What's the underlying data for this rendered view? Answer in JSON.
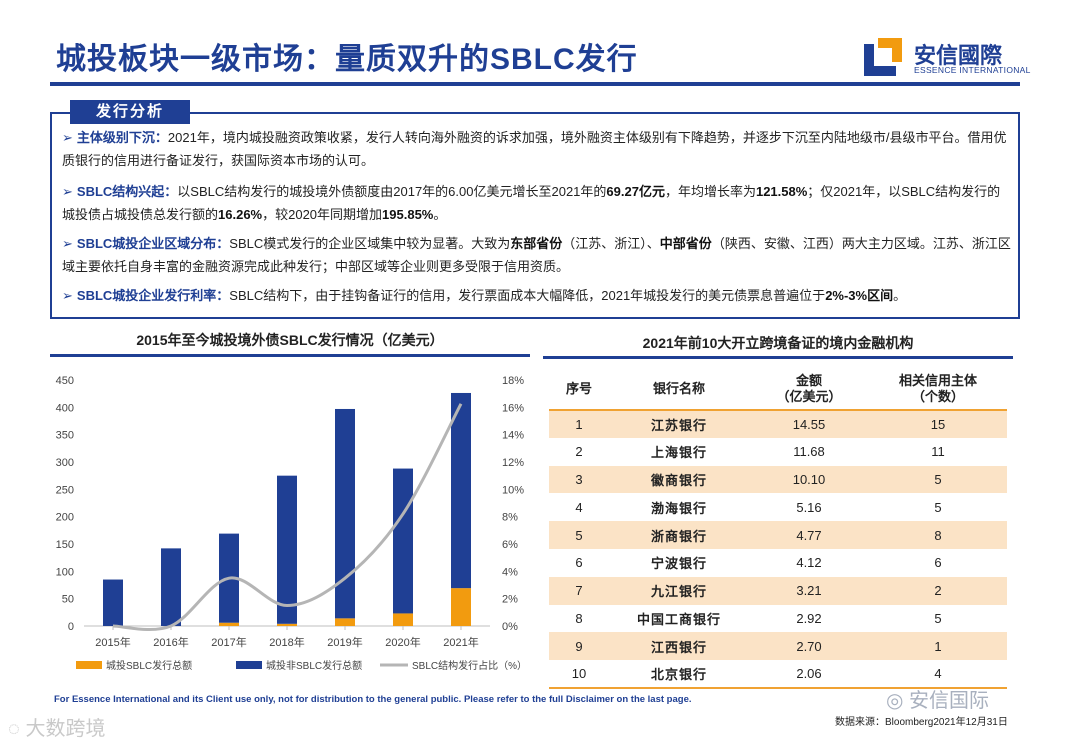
{
  "header": {
    "title": "城投板块一级市场：量质双升的SBLC发行",
    "logo_cn": "安信國際",
    "logo_en": "ESSENCE INTERNATIONAL"
  },
  "analysis": {
    "tab_label": "发行分析",
    "bullets": [
      {
        "heading": "主体级别下沉：",
        "parts": [
          {
            "t": "2021年，境内城投融资政策收紧，发行人转向海外融资的诉求加强，境外融资主体级别有下降趋势，并逐步下沉至内陆地级市/县级市平台。借用优质银行的信用进行备证发行，获国际资本市场的认可。",
            "b": false
          }
        ]
      },
      {
        "heading": "SBLC结构兴起：",
        "parts": [
          {
            "t": "以SBLC结构发行的城投境外债额度由2017年的6.00亿美元增长至2021年的",
            "b": false
          },
          {
            "t": "69.27亿元",
            "b": true
          },
          {
            "t": "，年均增长率为",
            "b": false
          },
          {
            "t": "121.58%",
            "b": true
          },
          {
            "t": "；仅2021年，以SBLC结构发行的城投债占城投债总发行额的",
            "b": false
          },
          {
            "t": "16.26%",
            "b": true
          },
          {
            "t": "，较2020年同期增加",
            "b": false
          },
          {
            "t": "195.85%",
            "b": true
          },
          {
            "t": "。",
            "b": false
          }
        ]
      },
      {
        "heading": "SBLC城投企业区域分布：",
        "parts": [
          {
            "t": "SBLC模式发行的企业区域集中较为显著。大致为",
            "b": false
          },
          {
            "t": "东部省份",
            "b": true
          },
          {
            "t": "（江苏、浙江）、",
            "b": false
          },
          {
            "t": "中部省份",
            "b": true
          },
          {
            "t": "（陕西、安徽、江西）两大主力区域。江苏、浙江区域主要依托自身丰富的金融资源完成此种发行；中部区域等企业则更多受限于信用资质。",
            "b": false
          }
        ]
      },
      {
        "heading": "SBLC城投企业发行利率：",
        "parts": [
          {
            "t": "SBLC结构下，由于挂钩备证行的信用，发行票面成本大幅降低，2021年城投发行的美元债票息普遍位于",
            "b": false
          },
          {
            "t": "2%-3%区间",
            "b": true
          },
          {
            "t": "。",
            "b": false
          }
        ]
      }
    ]
  },
  "chart_data": {
    "type": "bar",
    "title": "2015年至今城投境外债SBLC发行情况（亿美元）",
    "categories": [
      "2015年",
      "2016年",
      "2017年",
      "2018年",
      "2019年",
      "2020年",
      "2021年"
    ],
    "series": [
      {
        "name": "城投SBLC发行总额",
        "type": "bar-stacked",
        "axis": "left",
        "color": "#f29b0f",
        "values": [
          0,
          0,
          6,
          4,
          14,
          23,
          69.27
        ]
      },
      {
        "name": "城投非SBLC发行总额",
        "type": "bar-stacked",
        "axis": "left",
        "color": "#1f3f94",
        "values": [
          85,
          142,
          163,
          271,
          383,
          265,
          357
        ]
      },
      {
        "name": "SBLC结构发行占比（%）",
        "type": "line",
        "axis": "right",
        "color": "#b5b5b5",
        "values": [
          0,
          0,
          3.5,
          1.5,
          3.5,
          8.2,
          16.26
        ]
      }
    ],
    "ylim_left": [
      0,
      450
    ],
    "yticks_left": [
      0,
      50,
      100,
      150,
      200,
      250,
      300,
      350,
      400,
      450
    ],
    "ylim_right": [
      0,
      18
    ],
    "yticks_right": [
      "0%",
      "2%",
      "4%",
      "6%",
      "8%",
      "10%",
      "12%",
      "14%",
      "16%",
      "18%"
    ],
    "legend_position": "bottom"
  },
  "table": {
    "title": "2021年前10大开立跨境备证的境内金融机构",
    "headers": [
      "序号",
      "银行名称",
      "金额\n（亿美元）",
      "相关信用主体\n（个数）"
    ],
    "rows": [
      [
        "1",
        "江苏银行",
        "14.55",
        "15"
      ],
      [
        "2",
        "上海银行",
        "11.68",
        "11"
      ],
      [
        "3",
        "徽商银行",
        "10.10",
        "5"
      ],
      [
        "4",
        "渤海银行",
        "5.16",
        "5"
      ],
      [
        "5",
        "浙商银行",
        "4.77",
        "8"
      ],
      [
        "6",
        "宁波银行",
        "4.12",
        "6"
      ],
      [
        "7",
        "九江银行",
        "3.21",
        "2"
      ],
      [
        "8",
        "中国工商银行",
        "2.92",
        "5"
      ],
      [
        "9",
        "江西银行",
        "2.70",
        "1"
      ],
      [
        "10",
        "北京银行",
        "2.06",
        "4"
      ]
    ]
  },
  "footer": {
    "disclaimer": "For Essence International and its Client use only, not for distribution to the general public. Please refer to the full Disclaimer on the last page.",
    "source": "数据来源：Bloomberg2021年12月31日",
    "watermark_right": "安信国际",
    "watermark_left": "大数跨境"
  }
}
